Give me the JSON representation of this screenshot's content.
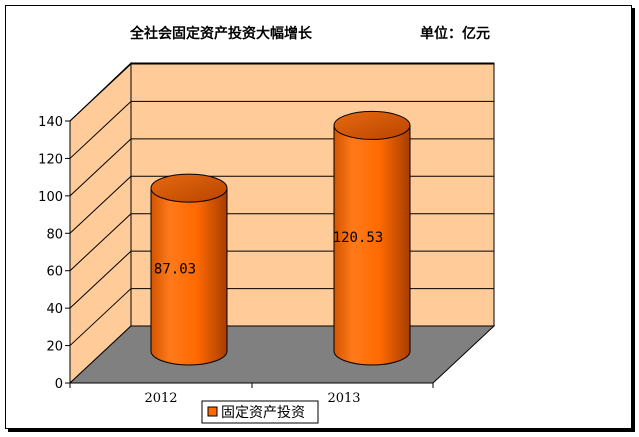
{
  "chart_data": {
    "type": "bar",
    "title": "全社会固定资产投资大幅增长",
    "unit_label": "单位：亿元",
    "categories": [
      "2012",
      "2013"
    ],
    "series": [
      {
        "name": "固定资产投资",
        "values": [
          87.03,
          120.53
        ]
      }
    ],
    "data_labels": [
      "87.03",
      "120.53"
    ],
    "y_ticks": [
      "0",
      "20",
      "40",
      "60",
      "80",
      "100",
      "120",
      "140"
    ],
    "ylim": [
      0,
      140
    ],
    "grid": true,
    "legend": "bottom",
    "colors": {
      "bar_light": "#ff7a1a",
      "bar_dark": "#b84400",
      "wall": "#ffcc99",
      "floor": "#808080"
    }
  }
}
